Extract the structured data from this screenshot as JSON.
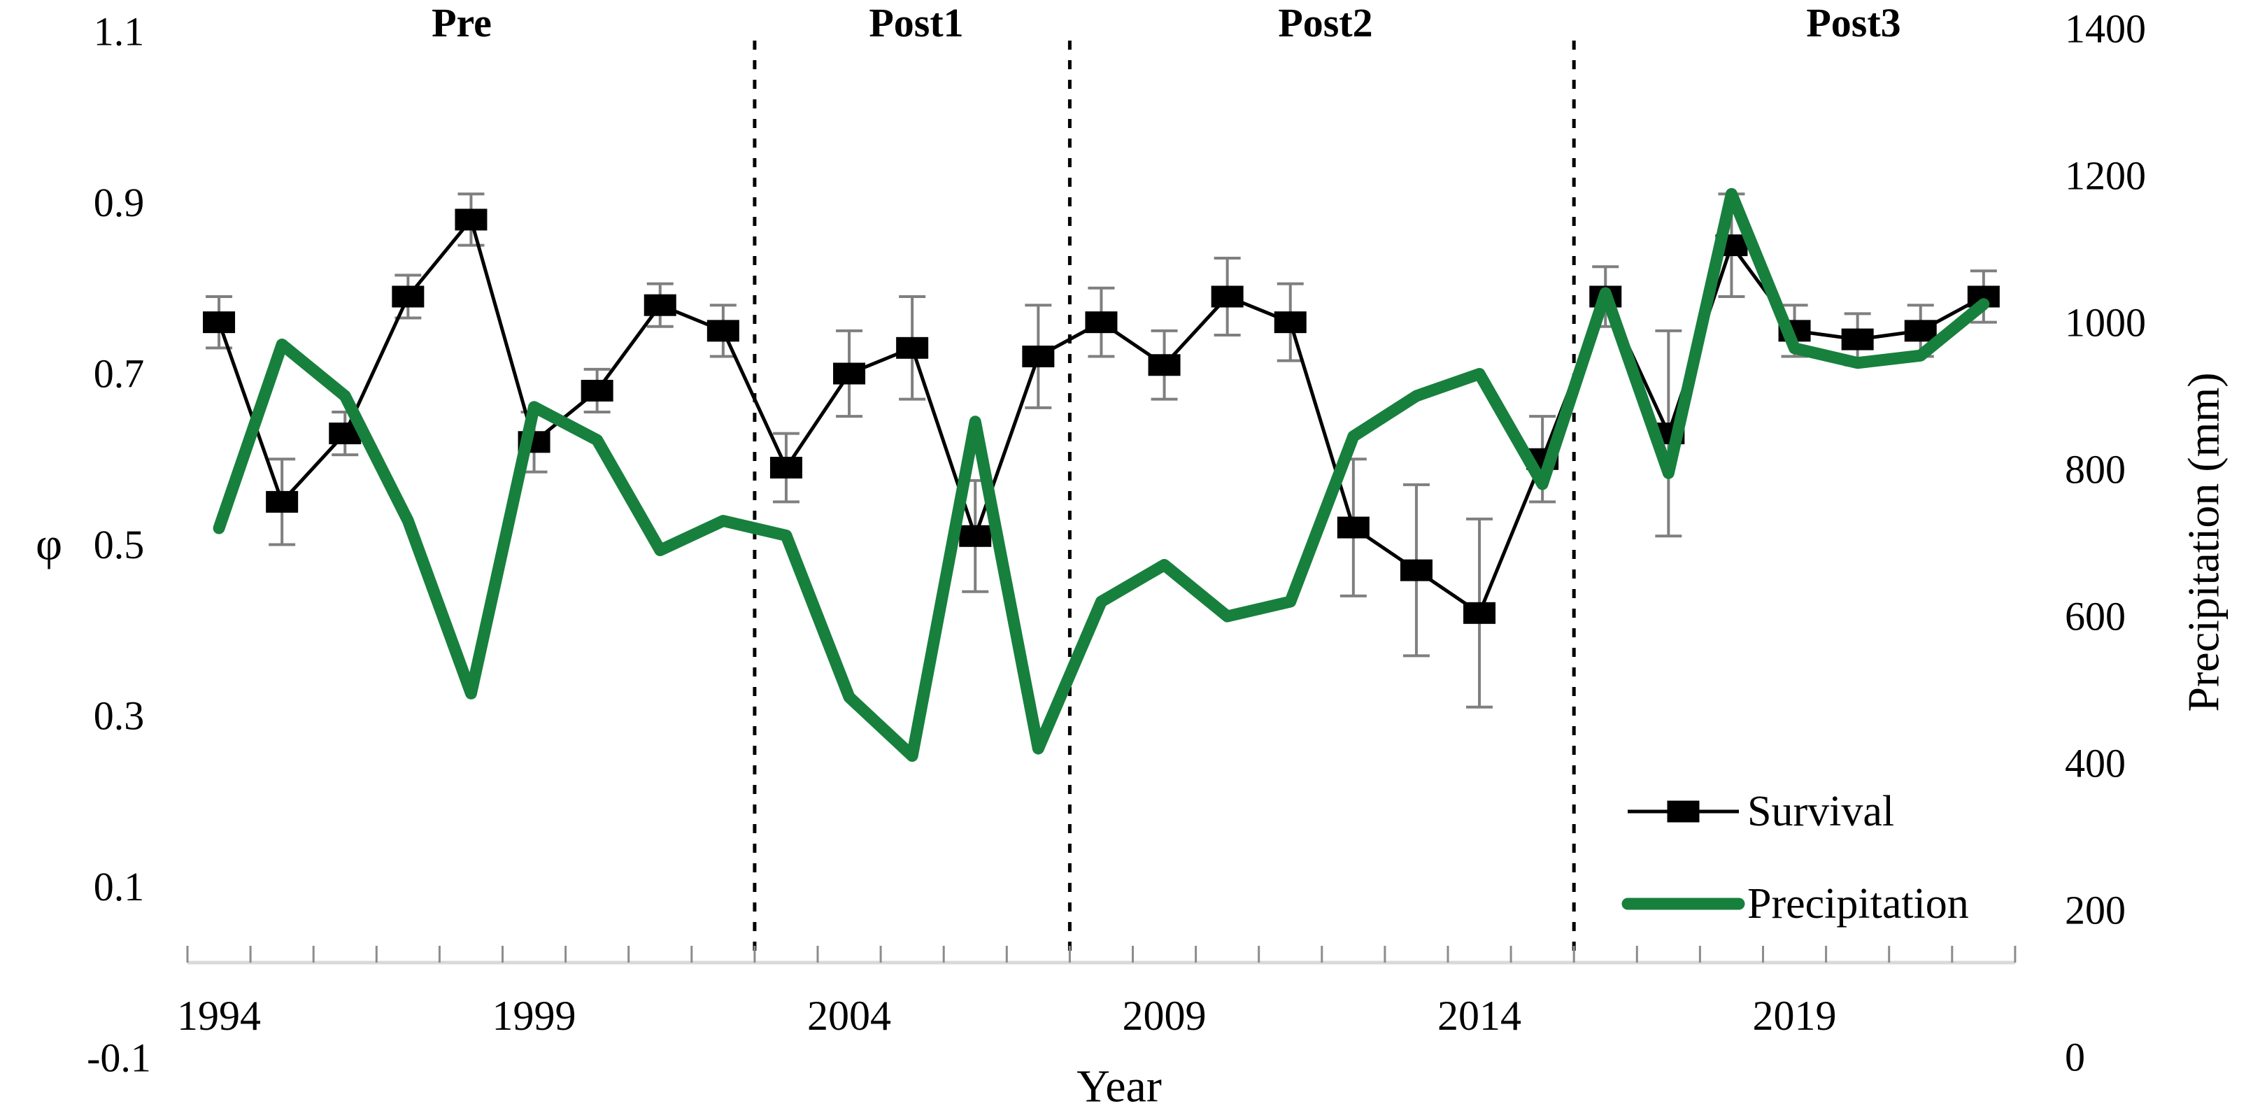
{
  "chart_data": {
    "type": "line",
    "title": "",
    "xlabel": "Year",
    "ylabel_left": "φ",
    "ylabel_right": "Precipitation (mm)",
    "x": [
      1994,
      1995,
      1996,
      1997,
      1998,
      1999,
      2000,
      2001,
      2002,
      2003,
      2004,
      2005,
      2006,
      2007,
      2008,
      2009,
      2010,
      2011,
      2012,
      2013,
      2014,
      2015,
      2016,
      2017,
      2018,
      2019,
      2020,
      2021,
      2022
    ],
    "x_tick_labels": [
      "1994",
      "1999",
      "2004",
      "2009",
      "2014",
      "2019"
    ],
    "left_axis": {
      "min": -0.1,
      "max": 1.1,
      "tick_labels": [
        "1.1",
        "0.9",
        "0.7",
        "0.5",
        "0.3",
        "0.1",
        "-0.1"
      ],
      "tick_values": [
        1.1,
        0.9,
        0.7,
        0.5,
        0.3,
        0.1,
        -0.1
      ]
    },
    "right_axis": {
      "min": 0,
      "max": 1400,
      "tick_labels": [
        "1400",
        "1200",
        "1000",
        "800",
        "600",
        "400",
        "200",
        "0"
      ],
      "tick_values": [
        1400,
        1200,
        1000,
        800,
        600,
        400,
        200,
        0
      ]
    },
    "series": [
      {
        "name": "Survival",
        "axis": "left",
        "color": "#000000",
        "marker": "square",
        "values": [
          0.76,
          0.55,
          0.63,
          0.79,
          0.88,
          0.62,
          0.68,
          0.78,
          0.75,
          0.59,
          0.7,
          0.73,
          0.51,
          0.72,
          0.76,
          0.71,
          0.79,
          0.76,
          0.52,
          0.47,
          0.42,
          0.6,
          0.79,
          0.63,
          0.85,
          0.75,
          0.74,
          0.75,
          0.79
        ],
        "errors": [
          0.03,
          0.05,
          0.025,
          0.025,
          0.03,
          0.035,
          0.025,
          0.025,
          0.03,
          0.04,
          0.05,
          0.06,
          0.065,
          0.06,
          0.04,
          0.04,
          0.045,
          0.045,
          0.08,
          0.1,
          0.11,
          0.05,
          0.035,
          0.12,
          0.06,
          0.03,
          0.03,
          0.03,
          0.03
        ],
        "error_color": "#7f7f7f"
      },
      {
        "name": "Precipitation",
        "axis": "right",
        "color": "#17803d",
        "values": [
          720,
          970,
          900,
          730,
          495,
          885,
          840,
          690,
          730,
          710,
          490,
          410,
          865,
          420,
          620,
          670,
          600,
          620,
          845,
          900,
          930,
          780,
          1040,
          795,
          1175,
          965,
          945,
          955,
          1025
        ]
      }
    ],
    "dividers": {
      "positions": [
        2002.5,
        2007.5,
        2015.5
      ],
      "labels": [
        "Pre",
        "Post1",
        "Post2",
        "Post3"
      ]
    },
    "legend": {
      "position": "bottom-right",
      "items": [
        "Survival",
        "Precipitation"
      ]
    },
    "grid": false,
    "axis_line_color": "#d9d9d9",
    "tick_color": "#8c8c8c"
  }
}
